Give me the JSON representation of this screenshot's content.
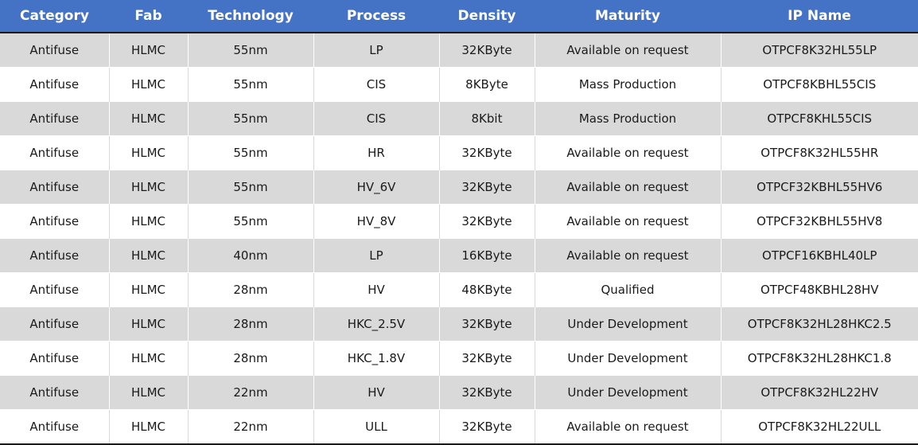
{
  "table": {
    "headers": [
      "Category",
      "Fab",
      "Technology",
      "Process",
      "Density",
      "Maturity",
      "IP Name"
    ],
    "rows": [
      [
        "Antifuse",
        "HLMC",
        "55nm",
        "LP",
        "32KByte",
        "Available on request",
        "OTPCF8K32HL55LP"
      ],
      [
        "Antifuse",
        "HLMC",
        "55nm",
        "CIS",
        "8KByte",
        "Mass Production",
        "OTPCF8KBHL55CIS"
      ],
      [
        "Antifuse",
        "HLMC",
        "55nm",
        "CIS",
        "8Kbit",
        "Mass Production",
        "OTPCF8KHL55CIS"
      ],
      [
        "Antifuse",
        "HLMC",
        "55nm",
        "HR",
        "32KByte",
        "Available on request",
        "OTPCF8K32HL55HR"
      ],
      [
        "Antifuse",
        "HLMC",
        "55nm",
        "HV_6V",
        "32KByte",
        "Available on request",
        "OTPCF32KBHL55HV6"
      ],
      [
        "Antifuse",
        "HLMC",
        "55nm",
        "HV_8V",
        "32KByte",
        "Available on request",
        "OTPCF32KBHL55HV8"
      ],
      [
        "Antifuse",
        "HLMC",
        "40nm",
        "LP",
        "16KByte",
        "Available on request",
        "OTPCF16KBHL40LP"
      ],
      [
        "Antifuse",
        "HLMC",
        "28nm",
        "HV",
        "48KByte",
        "Qualified",
        "OTPCF48KBHL28HV"
      ],
      [
        "Antifuse",
        "HLMC",
        "28nm",
        "HKC_2.5V",
        "32KByte",
        "Under Development",
        "OTPCF8K32HL28HKC2.5"
      ],
      [
        "Antifuse",
        "HLMC",
        "28nm",
        "HKC_1.8V",
        "32KByte",
        "Under Development",
        "OTPCF8K32HL28HKC1.8"
      ],
      [
        "Antifuse",
        "HLMC",
        "22nm",
        "HV",
        "32KByte",
        "Under Development",
        "OTPCF8K32HL22HV"
      ],
      [
        "Antifuse",
        "HLMC",
        "22nm",
        "ULL",
        "32KByte",
        "Available on request",
        "OTPCF8K32HL22ULL"
      ]
    ]
  },
  "colors": {
    "header_bg": "#4472c4",
    "header_text": "#ffffff",
    "band_gray": "#d9d9d9",
    "band_white": "#ffffff"
  }
}
